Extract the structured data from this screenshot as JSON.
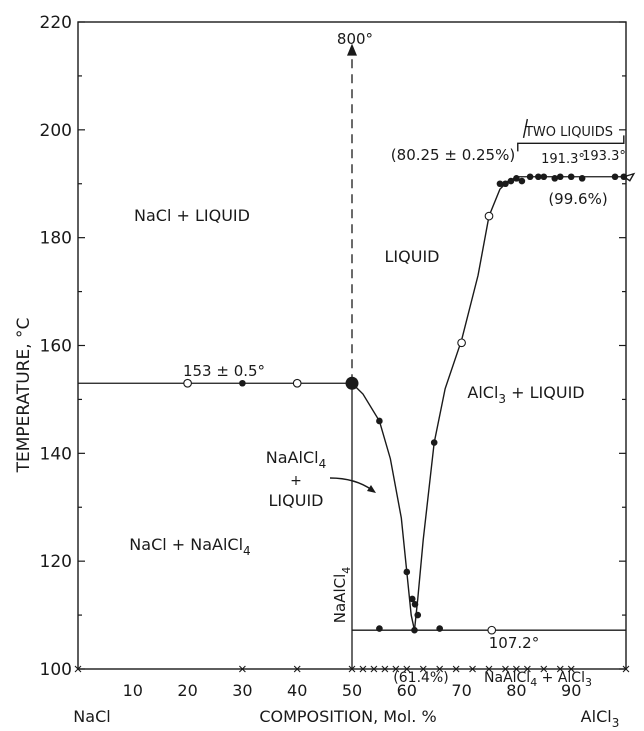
{
  "chart_data": {
    "type": "scatter",
    "xlabel": "COMPOSITION, Mol. %",
    "ylabel": "TEMPERATURE, °C",
    "xlim": [
      0,
      100
    ],
    "ylim": [
      100,
      220
    ],
    "x_ticks": [
      "10",
      "20",
      "30",
      "40",
      "50",
      "60",
      "70",
      "80",
      "90"
    ],
    "y_ticks": [
      "100",
      "120",
      "140",
      "160",
      "180",
      "200",
      "220"
    ],
    "end_labels": {
      "left": "NaCl",
      "right": "AlCl",
      "right_sub": "3"
    },
    "region_labels": [
      {
        "text": "NaCl + LIQUID"
      },
      {
        "text": "LIQUID"
      },
      {
        "text": "AlCl",
        "sub": "3",
        "rest": " + LIQUID"
      },
      {
        "text": "NaCl + NaAlCl",
        "sub": "4"
      },
      {
        "text": "NaAlCl",
        "sub": "4"
      },
      {
        "text": "+"
      },
      {
        "text": "LIQUID"
      },
      {
        "text": "NaAlCl",
        "sub": "4",
        "rest": " + AlCl",
        "sub2": "3"
      },
      {
        "text": "TWO LIQUIDS"
      },
      {
        "text": "NaAlCl",
        "sub": "4"
      }
    ],
    "annotations": {
      "t800": "800°",
      "eutectic1_temp": "153 ± 0.5°",
      "eutectic2_temp": "107.2°",
      "eutectic2_comp": "(61.4%)",
      "mono_left": "(80.25 ± 0.25%)",
      "mono_right": "(99.6%)",
      "t191": "191.3°",
      "t193": "193.3°"
    },
    "isotherms": [
      {
        "name": "153",
        "x": [
          0,
          50
        ],
        "y": [
          153,
          153
        ]
      },
      {
        "name": "107.2",
        "x": [
          50,
          100
        ],
        "y": [
          107.2,
          107.2
        ]
      },
      {
        "name": "191.3",
        "x": [
          80.25,
          100
        ],
        "y": [
          191.3,
          191.3
        ]
      }
    ],
    "series": [
      {
        "name": "liquidus_NaAlCl4",
        "curve": [
          [
            50,
            153
          ],
          [
            52,
            151
          ],
          [
            55,
            146
          ],
          [
            57,
            139
          ],
          [
            59,
            128
          ],
          [
            60,
            118
          ],
          [
            60.8,
            110
          ],
          [
            61.4,
            107.2
          ]
        ]
      },
      {
        "name": "liquidus_AlCl3",
        "curve": [
          [
            61.4,
            107.2
          ],
          [
            62,
            113
          ],
          [
            63,
            124
          ],
          [
            65,
            142
          ],
          [
            67,
            152
          ],
          [
            70,
            161
          ],
          [
            73,
            173
          ],
          [
            75,
            184
          ],
          [
            77,
            189
          ],
          [
            78.5,
            190.5
          ],
          [
            80.25,
            191.3
          ]
        ]
      },
      {
        "name": "filled_points",
        "x": [
          30,
          50,
          55,
          60,
          61,
          61.5,
          62,
          65,
          55,
          61.4,
          66,
          77,
          78,
          79,
          80,
          81,
          82.5,
          84,
          85,
          87,
          88,
          90,
          92,
          98,
          99.6
        ],
        "y": [
          153,
          153,
          146,
          118,
          113,
          112,
          110,
          142,
          107.5,
          107.2,
          107.5,
          190,
          190,
          190.5,
          191,
          190.5,
          191.3,
          191.3,
          191.3,
          191,
          191.3,
          191.3,
          191,
          191.3,
          191.3
        ]
      },
      {
        "name": "open_points",
        "x": [
          20,
          40,
          70,
          75,
          75.5
        ],
        "y": [
          153,
          153,
          160.5,
          184,
          107.2
        ]
      }
    ],
    "x_marks": [
      0,
      30,
      40,
      50,
      52,
      54,
      56,
      58,
      60,
      63,
      66,
      69,
      72,
      75,
      78,
      80,
      82,
      85,
      88,
      90,
      100
    ]
  }
}
